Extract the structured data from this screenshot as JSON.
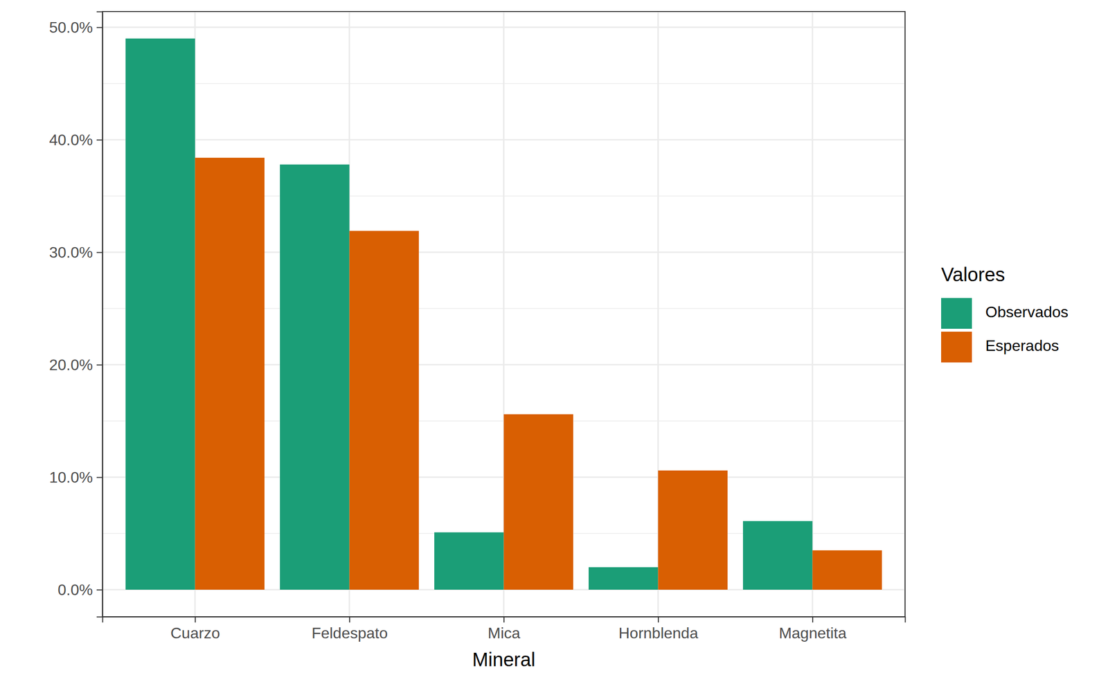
{
  "chart_data": {
    "type": "bar",
    "x_label": "Mineral",
    "categories": [
      "Cuarzo",
      "Feldespato",
      "Mica",
      "Hornblenda",
      "Magnetita"
    ],
    "series": [
      {
        "name": "Observados",
        "color": "#1b9e77",
        "values": [
          49.0,
          37.8,
          5.1,
          2.0,
          6.1
        ]
      },
      {
        "name": "Esperados",
        "color": "#d95f02",
        "values": [
          38.4,
          31.9,
          15.6,
          10.6,
          3.5
        ]
      }
    ],
    "ylim": [
      -2.4,
      51.4
    ],
    "yticks": [
      {
        "value": 0,
        "label": "0.0%"
      },
      {
        "value": 10,
        "label": "10.0%"
      },
      {
        "value": 20,
        "label": "20.0%"
      },
      {
        "value": 30,
        "label": "30.0%"
      },
      {
        "value": 40,
        "label": "40.0%"
      },
      {
        "value": 50,
        "label": "50.0%"
      }
    ],
    "grid": true,
    "legend": "right",
    "legend_title": "Valores"
  }
}
